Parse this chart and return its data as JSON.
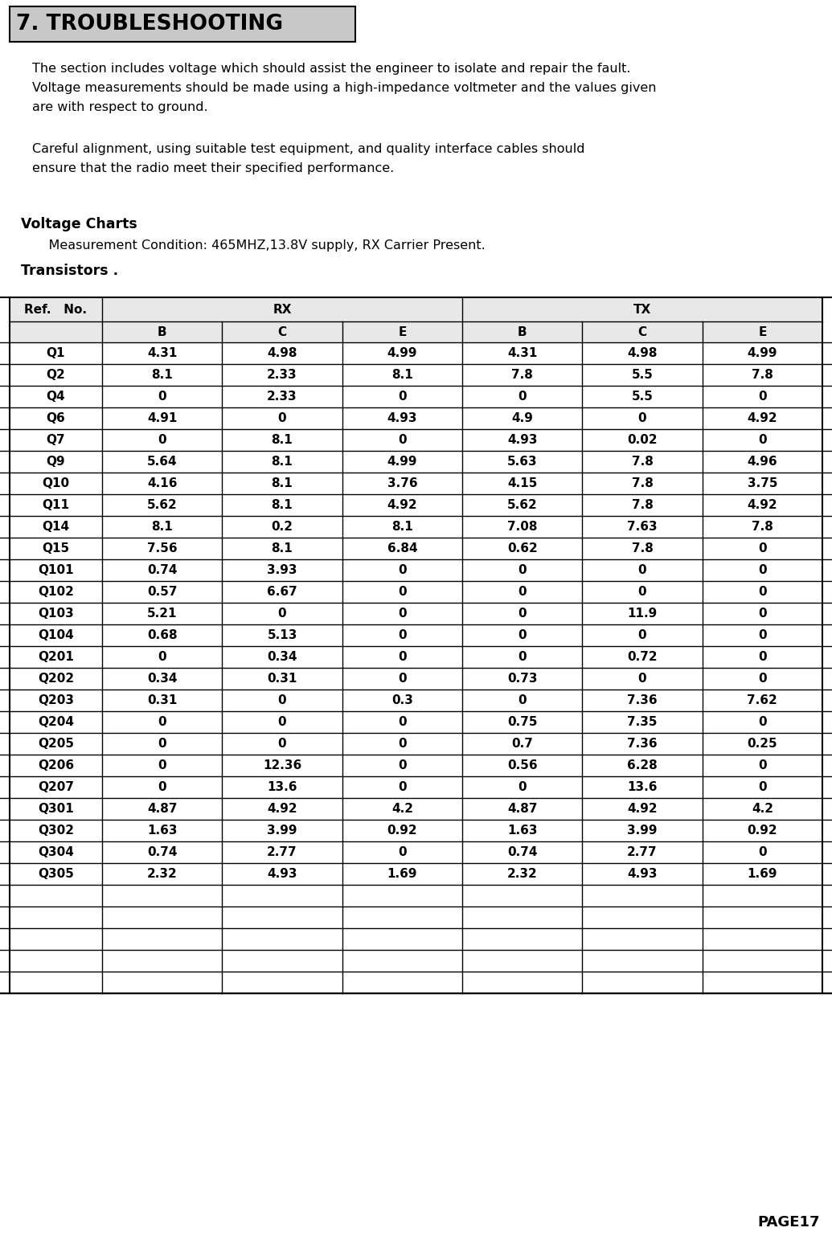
{
  "title": "7. TROUBLESHOOTING",
  "para1": "The section includes voltage which should assist the engineer to isolate and repair the fault.",
  "para2": "Voltage measurements should be made using a high-impedance voltmeter and the values given",
  "para3": "are with respect to ground.",
  "para4": "Careful alignment, using suitable test equipment, and quality interface cables should",
  "para5": "ensure that the radio meet their specified performance.",
  "voltage_charts_label": "Voltage Charts",
  "measurement_condition": "    Measurement Condition: 465MHZ,13.8V supply, RX Carrier Present.",
  "transistors_label": "Transistors .",
  "rows": [
    [
      "Q1",
      "4.31",
      "4.98",
      "4.99",
      "4.31",
      "4.98",
      "4.99"
    ],
    [
      "Q2",
      "8.1",
      "2.33",
      "8.1",
      "7.8",
      "5.5",
      "7.8"
    ],
    [
      "Q4",
      "0",
      "2.33",
      "0",
      "0",
      "5.5",
      "0"
    ],
    [
      "Q6",
      "4.91",
      "0",
      "4.93",
      "4.9",
      "0",
      "4.92"
    ],
    [
      "Q7",
      "0",
      "8.1",
      "0",
      "4.93",
      "0.02",
      "0"
    ],
    [
      "Q9",
      "5.64",
      "8.1",
      "4.99",
      "5.63",
      "7.8",
      "4.96"
    ],
    [
      "Q10",
      "4.16",
      "8.1",
      "3.76",
      "4.15",
      "7.8",
      "3.75"
    ],
    [
      "Q11",
      "5.62",
      "8.1",
      "4.92",
      "5.62",
      "7.8",
      "4.92"
    ],
    [
      "Q14",
      "8.1",
      "0.2",
      "8.1",
      "7.08",
      "7.63",
      "7.8"
    ],
    [
      "Q15",
      "7.56",
      "8.1",
      "6.84",
      "0.62",
      "7.8",
      "0"
    ],
    [
      "Q101",
      "0.74",
      "3.93",
      "0",
      "0",
      "0",
      "0"
    ],
    [
      "Q102",
      "0.57",
      "6.67",
      "0",
      "0",
      "0",
      "0"
    ],
    [
      "Q103",
      "5.21",
      "0",
      "0",
      "0",
      "11.9",
      "0"
    ],
    [
      "Q104",
      "0.68",
      "5.13",
      "0",
      "0",
      "0",
      "0"
    ],
    [
      "Q201",
      "0",
      "0.34",
      "0",
      "0",
      "0.72",
      "0"
    ],
    [
      "Q202",
      "0.34",
      "0.31",
      "0",
      "0.73",
      "0",
      "0"
    ],
    [
      "Q203",
      "0.31",
      "0",
      "0.3",
      "0",
      "7.36",
      "7.62"
    ],
    [
      "Q204",
      "0",
      "0",
      "0",
      "0.75",
      "7.35",
      "0"
    ],
    [
      "Q205",
      "0",
      "0",
      "0",
      "0.7",
      "7.36",
      "0.25"
    ],
    [
      "Q206",
      "0",
      "12.36",
      "0",
      "0.56",
      "6.28",
      "0"
    ],
    [
      "Q207",
      "0",
      "13.6",
      "0",
      "0",
      "13.6",
      "0"
    ],
    [
      "Q301",
      "4.87",
      "4.92",
      "4.2",
      "4.87",
      "4.92",
      "4.2"
    ],
    [
      "Q302",
      "1.63",
      "3.99",
      "0.92",
      "1.63",
      "3.99",
      "0.92"
    ],
    [
      "Q304",
      "0.74",
      "2.77",
      "0",
      "0.74",
      "2.77",
      "0"
    ],
    [
      "Q305",
      "2.32",
      "4.93",
      "1.69",
      "2.32",
      "4.93",
      "1.69"
    ]
  ],
  "empty_rows": 5,
  "page_label": "PAGE17",
  "bg_color": "#ffffff",
  "title_bg": "#c8c8c8",
  "header_bg": "#e8e8e8"
}
